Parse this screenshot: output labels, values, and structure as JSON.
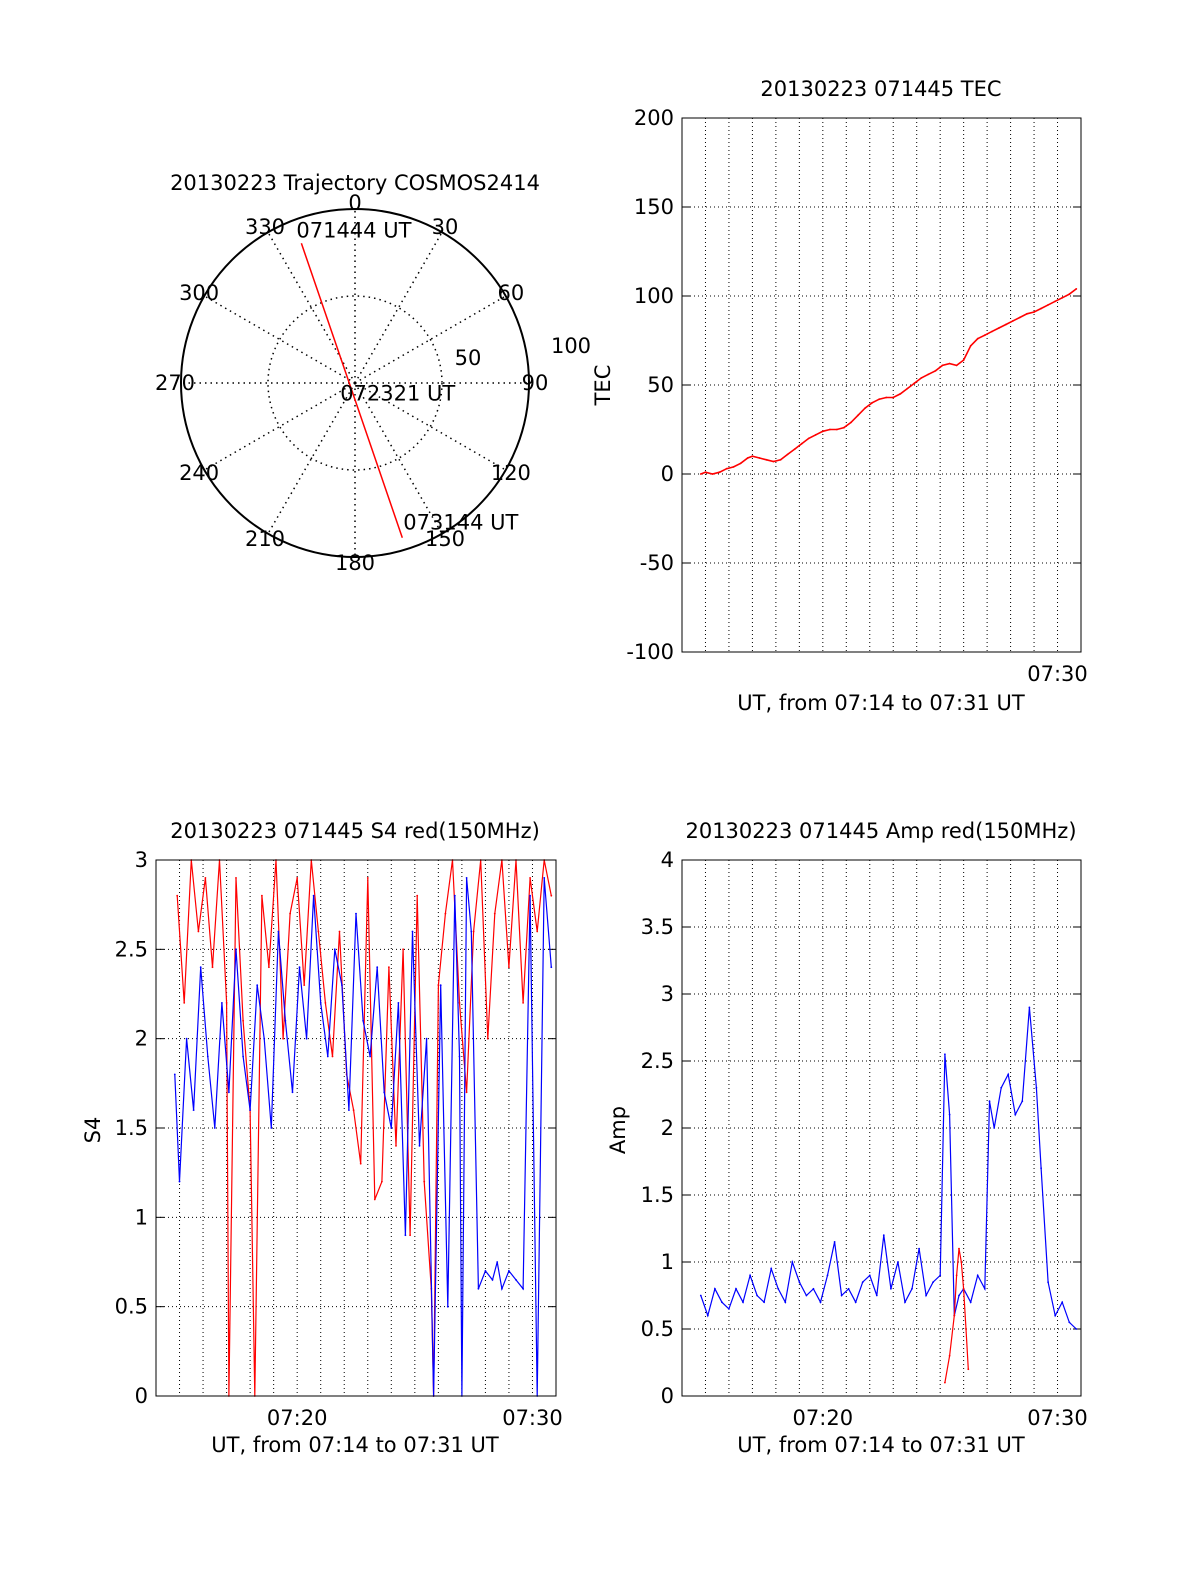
{
  "polar": {
    "title": "20130223 Trajectory COSMOS2414",
    "azimuth_labels": [
      "0",
      "30",
      "60",
      "90",
      "120",
      "150",
      "180",
      "210",
      "240",
      "270",
      "300",
      "330"
    ],
    "azimuths_deg": [
      0,
      30,
      60,
      90,
      120,
      150,
      180,
      210,
      240,
      270,
      300,
      330
    ],
    "radius_labels": [
      "50",
      "100"
    ],
    "zenith_labels": [
      50,
      100
    ],
    "zenith_max": 100,
    "track": {
      "start": {
        "label": "071444 UT",
        "azimuth_deg": 339,
        "zenith": 86
      },
      "mid": {
        "label": "072321 UT",
        "azimuth_deg": 160,
        "zenith": 2
      },
      "end": {
        "label": "073144 UT",
        "azimuth_deg": 163,
        "zenith": 93
      }
    },
    "color": "#ff0000"
  },
  "tec": {
    "title": "20130223 071445 TEC",
    "ylabel": "TEC",
    "xlabel": "UT, from 07:14 to 07:31 UT",
    "xtick_labels": [
      "07:30"
    ],
    "ytick_labels": [
      "200",
      "150",
      "100",
      "50",
      "0",
      "-50",
      "-100"
    ],
    "chart_data": {
      "type": "line",
      "xlim_min": [
        14,
        31
      ],
      "ylim": [
        -100,
        200
      ],
      "yticks": [
        200,
        150,
        100,
        50,
        0,
        -50,
        -100
      ],
      "xticks_min": [
        30
      ],
      "grid": true,
      "series": [
        {
          "color": "#ff0000",
          "x_min": [
            14.8,
            15.0,
            15.3,
            15.6,
            15.9,
            16.2,
            16.5,
            16.8,
            17.0,
            17.3,
            17.6,
            17.9,
            18.2,
            18.5,
            18.8,
            19.1,
            19.4,
            19.7,
            20.0,
            20.3,
            20.6,
            20.9,
            21.2,
            21.5,
            21.8,
            22.1,
            22.4,
            22.7,
            23.0,
            23.3,
            23.6,
            23.9,
            24.2,
            24.5,
            24.8,
            25.1,
            25.4,
            25.7,
            26.0,
            26.3,
            26.6,
            26.9,
            27.2,
            27.5,
            27.8,
            28.1,
            28.4,
            28.7,
            29.0,
            29.3,
            29.6,
            29.9,
            30.2,
            30.5,
            30.8
          ],
          "values": [
            0,
            1,
            0,
            1,
            3,
            4,
            6,
            9,
            10,
            9,
            8,
            7,
            8,
            11,
            14,
            17,
            20,
            22,
            24,
            25,
            25,
            26,
            29,
            33,
            37,
            40,
            42,
            43,
            43,
            45,
            48,
            51,
            54,
            56,
            58,
            61,
            62,
            61,
            64,
            72,
            76,
            78,
            80,
            82,
            84,
            86,
            88,
            90,
            91,
            93,
            95,
            97,
            99,
            101,
            104
          ]
        }
      ]
    }
  },
  "s4": {
    "title": "20130223 071445 S4 red(150MHz)",
    "ylabel": "S4",
    "xlabel": "UT, from 07:14 to 07:31 UT",
    "xtick_labels": [
      "07:20",
      "07:30"
    ],
    "ytick_labels": [
      "3",
      "2.5",
      "2",
      "1.5",
      "1",
      "0.5",
      "0"
    ],
    "chart_data": {
      "type": "line",
      "xlim_min": [
        14,
        31
      ],
      "ylim": [
        0,
        3
      ],
      "yticks": [
        3,
        2.5,
        2,
        1.5,
        1,
        0.5,
        0
      ],
      "xticks_min": [
        20,
        30
      ],
      "grid": true,
      "series": [
        {
          "color": "#ff0000",
          "x_min": [
            14.9,
            15.2,
            15.5,
            15.8,
            16.1,
            16.4,
            16.7,
            17.0,
            17.1,
            17.4,
            17.7,
            18.0,
            18.2,
            18.5,
            18.8,
            19.1,
            19.4,
            19.7,
            20.0,
            20.3,
            20.6,
            20.9,
            21.2,
            21.5,
            21.8,
            22.1,
            22.4,
            22.7,
            23.0,
            23.3,
            23.6,
            23.9,
            24.2,
            24.5,
            24.8,
            25.1,
            25.4,
            25.7,
            25.8,
            26.0,
            26.3,
            26.6,
            26.9,
            27.2,
            27.5,
            27.8,
            28.1,
            28.4,
            28.7,
            29.0,
            29.3,
            29.6,
            29.9,
            30.2,
            30.5,
            30.8
          ],
          "values": [
            2.8,
            2.2,
            3.0,
            2.6,
            2.9,
            2.4,
            3.0,
            2.2,
            0.0,
            2.9,
            2.1,
            1.6,
            0.0,
            2.8,
            2.4,
            3.0,
            2.0,
            2.7,
            2.9,
            2.3,
            3.0,
            2.6,
            2.2,
            1.9,
            2.6,
            1.8,
            1.6,
            1.3,
            2.9,
            1.1,
            1.2,
            2.4,
            1.4,
            2.5,
            0.9,
            2.8,
            1.2,
            0.6,
            0.0,
            2.3,
            2.7,
            3.0,
            2.2,
            1.7,
            2.6,
            3.0,
            2.0,
            2.7,
            3.0,
            2.4,
            3.0,
            2.2,
            2.9,
            2.6,
            3.0,
            2.8
          ]
        },
        {
          "color": "#0000ff",
          "x_min": [
            14.8,
            15.0,
            15.3,
            15.6,
            15.9,
            16.2,
            16.5,
            16.8,
            17.1,
            17.4,
            17.7,
            18.0,
            18.3,
            18.6,
            18.9,
            19.2,
            19.5,
            19.8,
            20.1,
            20.4,
            20.7,
            21.0,
            21.3,
            21.6,
            21.9,
            22.2,
            22.5,
            22.8,
            23.1,
            23.4,
            23.7,
            24.0,
            24.3,
            24.6,
            24.9,
            25.2,
            25.5,
            25.8,
            26.1,
            26.4,
            26.7,
            26.9,
            27.0,
            27.2,
            27.4,
            27.7,
            28.0,
            28.3,
            28.5,
            28.7,
            29.0,
            29.3,
            29.6,
            29.9,
            30.2,
            30.5,
            30.8
          ],
          "values": [
            1.8,
            1.2,
            2.0,
            1.6,
            2.4,
            1.9,
            1.5,
            2.2,
            1.7,
            2.5,
            1.9,
            1.6,
            2.3,
            2.0,
            1.5,
            2.6,
            2.1,
            1.7,
            2.4,
            2.0,
            2.8,
            2.2,
            1.9,
            2.5,
            2.3,
            1.6,
            2.7,
            2.1,
            1.9,
            2.4,
            1.7,
            1.5,
            2.2,
            0.9,
            2.6,
            1.4,
            2.0,
            0.0,
            2.3,
            0.5,
            2.8,
            1.9,
            0.0,
            2.9,
            2.6,
            0.6,
            0.7,
            0.65,
            0.75,
            0.6,
            0.7,
            0.65,
            0.6,
            2.8,
            0.0,
            2.9,
            2.4
          ]
        }
      ]
    }
  },
  "amp": {
    "title": "20130223 071445 Amp red(150MHz)",
    "ylabel": "Amp",
    "xlabel": "UT, from 07:14 to 07:31 UT",
    "xtick_labels": [
      "07:20",
      "07:30"
    ],
    "ytick_labels": [
      "4",
      "3.5",
      "3",
      "2.5",
      "2",
      "1.5",
      "1",
      "0.5",
      "0"
    ],
    "chart_data": {
      "type": "line",
      "xlim_min": [
        14,
        31
      ],
      "ylim": [
        0,
        4
      ],
      "yticks": [
        4,
        3.5,
        3,
        2.5,
        2,
        1.5,
        1,
        0.5,
        0
      ],
      "xticks_min": [
        20,
        30
      ],
      "grid": true,
      "series": [
        {
          "color": "#0000ff",
          "x_min": [
            14.8,
            15.1,
            15.4,
            15.7,
            16.0,
            16.3,
            16.6,
            16.9,
            17.2,
            17.5,
            17.8,
            18.1,
            18.4,
            18.7,
            19.0,
            19.3,
            19.6,
            19.9,
            20.2,
            20.5,
            20.8,
            21.1,
            21.4,
            21.7,
            22.0,
            22.3,
            22.6,
            22.9,
            23.2,
            23.5,
            23.8,
            24.1,
            24.4,
            24.7,
            25.0,
            25.2,
            25.4,
            25.6,
            25.8,
            26.0,
            26.3,
            26.6,
            26.9,
            27.1,
            27.3,
            27.6,
            27.9,
            28.2,
            28.5,
            28.8,
            29.1,
            29.3,
            29.6,
            29.9,
            30.2,
            30.5,
            30.8
          ],
          "values": [
            0.75,
            0.6,
            0.8,
            0.7,
            0.65,
            0.8,
            0.7,
            0.9,
            0.75,
            0.7,
            0.95,
            0.8,
            0.7,
            1.0,
            0.85,
            0.75,
            0.8,
            0.7,
            0.9,
            1.15,
            0.75,
            0.8,
            0.7,
            0.85,
            0.9,
            0.75,
            1.2,
            0.8,
            1.0,
            0.7,
            0.8,
            1.1,
            0.75,
            0.85,
            0.9,
            2.55,
            2.1,
            0.6,
            0.75,
            0.8,
            0.7,
            0.9,
            0.8,
            2.2,
            2.0,
            2.3,
            2.4,
            2.1,
            2.2,
            2.9,
            2.3,
            1.7,
            0.85,
            0.6,
            0.7,
            0.55,
            0.5
          ]
        },
        {
          "color": "#ff0000",
          "x_min": [
            25.2,
            25.4,
            25.6,
            25.7,
            25.8,
            25.9,
            26.0,
            26.1,
            26.2
          ],
          "values": [
            0.1,
            0.3,
            0.6,
            0.9,
            1.1,
            1.0,
            0.8,
            0.5,
            0.2
          ]
        }
      ]
    }
  }
}
